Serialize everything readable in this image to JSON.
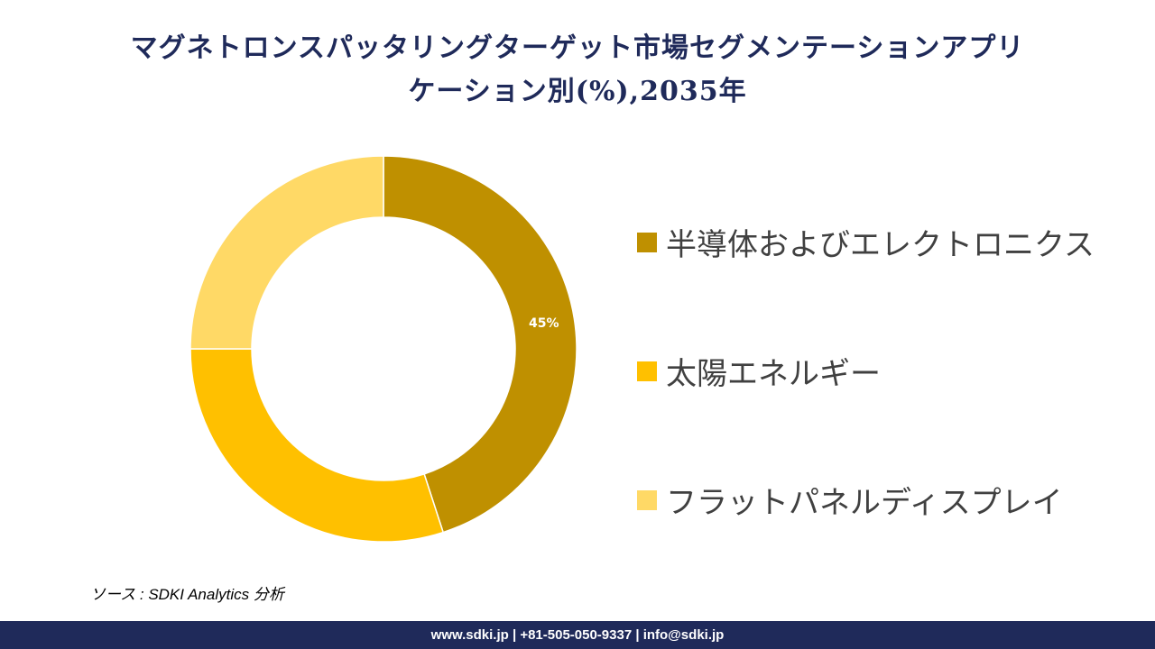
{
  "chart_data": {
    "type": "pie",
    "variant": "donut",
    "title": "マグネトロンスパッタリングターゲット市場セグメンテーションアプリケーション別(%),2035年",
    "categories": [
      "半導体およびエレクトロニクス",
      "太陽エネルギー",
      "フラットパネルディスプレイ"
    ],
    "values": [
      45,
      30,
      25
    ],
    "colors": [
      "#bf9000",
      "#ffc000",
      "#ffd966"
    ],
    "data_labels": [
      "45%",
      null,
      null
    ],
    "legend_position": "right"
  },
  "title_lines": [
    "マグネトロンスパッタリングターゲット市場セグメンテーションアプリ",
    "ケーション別(%),2035年"
  ],
  "source": "ソース : SDKI Analytics  分析",
  "footer": "www.sdki.jp | +81-505-050-9337 | info@sdki.jp"
}
